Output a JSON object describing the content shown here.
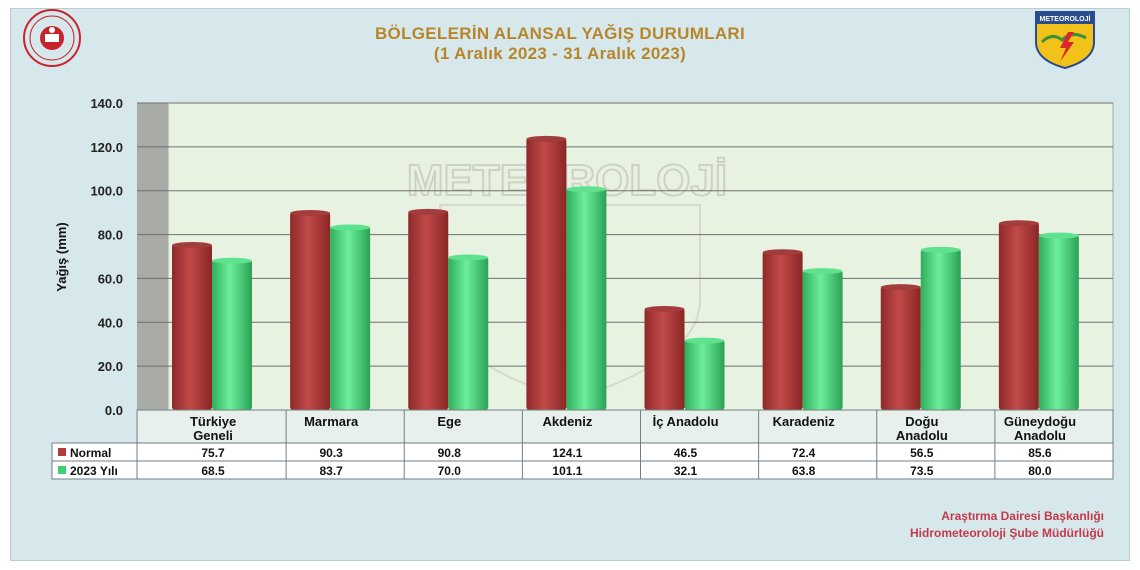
{
  "header": {
    "title_line1": "BÖLGELERİN ALANSAL YAĞIŞ DURUMLARI",
    "title_line2": "(1 Aralık 2023 - 31 Aralık 2023)",
    "right_logo_text": "METEOROLOJİ",
    "watermark_text": "METEOROLOJİ"
  },
  "footer": {
    "credit_line1": "Araştırma Dairesi Başkanlığı",
    "credit_line2": "Hidrometeoroloji Şube Müdürlüğü"
  },
  "colors": {
    "normal": "#b13c3c",
    "year2023": "#3fcf74",
    "title": "#b8862a",
    "credit": "#c23a4a",
    "plot_bg": "#e8f2e0",
    "panel_bg": "#d7e8ec"
  },
  "chart_data": {
    "type": "bar",
    "title": "BÖLGELERİN ALANSAL YAĞIŞ DURUMLARI",
    "subtitle": "(1 Aralık 2023 - 31 Aralık 2023)",
    "ylabel": "Yağış (mm)",
    "xlabel": "",
    "ylim": [
      0,
      140
    ],
    "yticks": [
      "0.0",
      "20.0",
      "40.0",
      "60.0",
      "80.0",
      "100.0",
      "120.0",
      "140.0"
    ],
    "grid": true,
    "legend": "data-table",
    "categories": [
      [
        "Türkiye",
        "Geneli"
      ],
      [
        "Marmara"
      ],
      [
        "Ege"
      ],
      [
        "Akdeniz"
      ],
      [
        "İç Anadolu"
      ],
      [
        "Karadeniz"
      ],
      [
        "Doğu",
        "Anadolu"
      ],
      [
        "Güneydoğu",
        "Anadolu"
      ]
    ],
    "series": [
      {
        "name": "Normal",
        "color": "#b13c3c",
        "values": [
          75.7,
          90.3,
          90.8,
          124.1,
          46.5,
          72.4,
          56.5,
          85.6
        ],
        "labels": [
          "75.7",
          "90.3",
          "90.8",
          "124.1",
          "46.5",
          "72.4",
          "56.5",
          "85.6"
        ]
      },
      {
        "name": "2023 Yılı",
        "color": "#3fcf74",
        "values": [
          68.5,
          83.7,
          70.0,
          101.1,
          32.1,
          63.8,
          73.5,
          80.0
        ],
        "labels": [
          "68.5",
          "83.7",
          "70.0",
          "101.1",
          "32.1",
          "63.8",
          "73.5",
          "80.0"
        ]
      }
    ]
  }
}
